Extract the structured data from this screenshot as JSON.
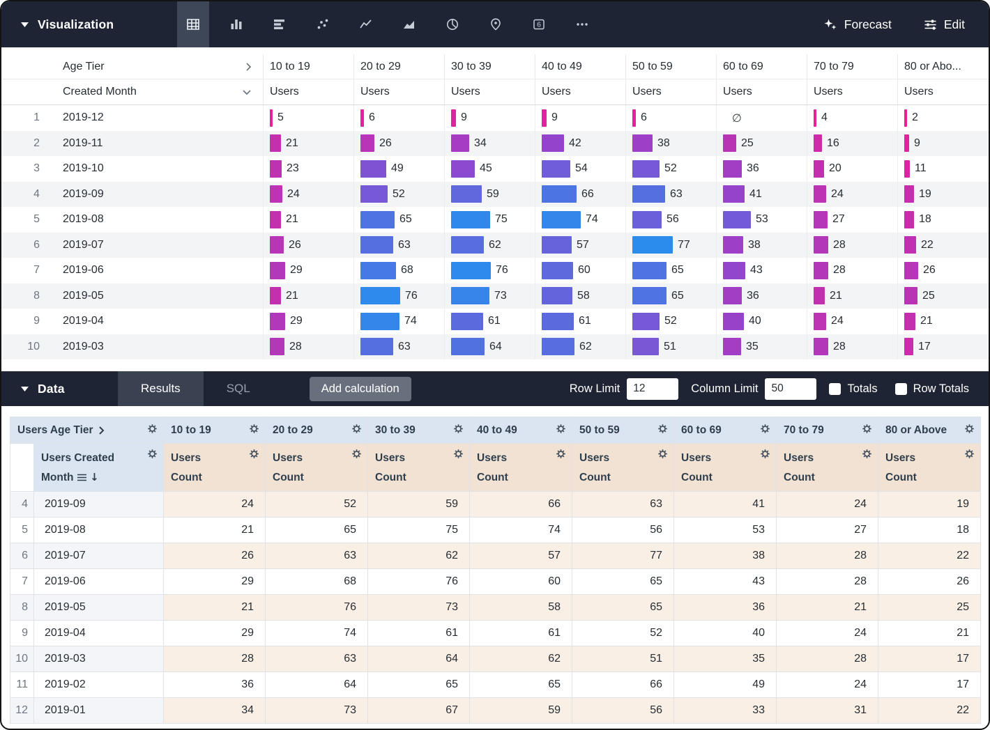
{
  "viz_bar": {
    "title": "Visualization",
    "selected_icon": "table",
    "icon_names": [
      "table",
      "column-chart",
      "bar-chart",
      "scatter",
      "line-chart",
      "area-chart",
      "pie-chart",
      "map",
      "single-value",
      "more"
    ],
    "single_value_glyph": "6",
    "forecast_label": "Forecast",
    "edit_label": "Edit"
  },
  "viz_table": {
    "pivot_field_label": "Age Tier",
    "dimension_field_label": "Created Month",
    "measure_label": "Users",
    "null_symbol": "∅",
    "max_value": 77,
    "bar_gradient": [
      "#ec1e96",
      "#9444cc",
      "#2b8cee"
    ],
    "columns": [
      "10 to 19",
      "20 to 29",
      "30 to 39",
      "40 to 49",
      "50 to 59",
      "60 to 69",
      "70 to 79",
      "80 or Abo..."
    ],
    "rows": [
      {
        "index": 1,
        "month": "2019-12",
        "values": [
          5,
          6,
          9,
          9,
          6,
          null,
          4,
          2
        ]
      },
      {
        "index": 2,
        "month": "2019-11",
        "values": [
          21,
          26,
          34,
          42,
          38,
          25,
          16,
          9
        ]
      },
      {
        "index": 3,
        "month": "2019-10",
        "values": [
          23,
          49,
          45,
          54,
          52,
          36,
          20,
          11
        ]
      },
      {
        "index": 4,
        "month": "2019-09",
        "values": [
          24,
          52,
          59,
          66,
          63,
          41,
          24,
          19
        ]
      },
      {
        "index": 5,
        "month": "2019-08",
        "values": [
          21,
          65,
          75,
          74,
          56,
          53,
          27,
          18
        ]
      },
      {
        "index": 6,
        "month": "2019-07",
        "values": [
          26,
          63,
          62,
          57,
          77,
          38,
          28,
          22
        ]
      },
      {
        "index": 7,
        "month": "2019-06",
        "values": [
          29,
          68,
          76,
          60,
          65,
          43,
          28,
          26
        ]
      },
      {
        "index": 8,
        "month": "2019-05",
        "values": [
          21,
          76,
          73,
          58,
          65,
          36,
          21,
          25
        ]
      },
      {
        "index": 9,
        "month": "2019-04",
        "values": [
          29,
          74,
          61,
          61,
          52,
          40,
          24,
          21
        ]
      },
      {
        "index": 10,
        "month": "2019-03",
        "values": [
          28,
          63,
          64,
          62,
          51,
          35,
          28,
          17
        ]
      }
    ]
  },
  "data_panel": {
    "title": "Data",
    "results_tab": "Results",
    "sql_tab": "SQL",
    "selected_tab": "Results",
    "add_calculation": "Add calculation",
    "row_limit_label": "Row Limit",
    "row_limit_value": "12",
    "column_limit_label": "Column Limit",
    "column_limit_value": "50",
    "totals_label": "Totals",
    "totals_checked": false,
    "row_totals_label": "Row Totals",
    "row_totals_checked": false
  },
  "data_table": {
    "corner_header": "Users Age Tier",
    "dimension_header_line1": "Users Created",
    "dimension_header_line2": "Month",
    "measure_header_line1": "Users",
    "measure_header_line2": "Count",
    "arrow_down": "↓",
    "columns": [
      "10 to 19",
      "20 to 29",
      "30 to 39",
      "40 to 49",
      "50 to 59",
      "60 to 69",
      "70 to 79",
      "80 or Above"
    ],
    "rows": [
      {
        "index": 4,
        "month": "2019-09",
        "values": [
          24,
          52,
          59,
          66,
          63,
          41,
          24,
          19
        ]
      },
      {
        "index": 5,
        "month": "2019-08",
        "values": [
          21,
          65,
          75,
          74,
          56,
          53,
          27,
          18
        ]
      },
      {
        "index": 6,
        "month": "2019-07",
        "values": [
          26,
          63,
          62,
          57,
          77,
          38,
          28,
          22
        ]
      },
      {
        "index": 7,
        "month": "2019-06",
        "values": [
          29,
          68,
          76,
          60,
          65,
          43,
          28,
          26
        ]
      },
      {
        "index": 8,
        "month": "2019-05",
        "values": [
          21,
          76,
          73,
          58,
          65,
          36,
          21,
          25
        ]
      },
      {
        "index": 9,
        "month": "2019-04",
        "values": [
          29,
          74,
          61,
          61,
          52,
          40,
          24,
          21
        ]
      },
      {
        "index": 10,
        "month": "2019-03",
        "values": [
          28,
          63,
          64,
          62,
          51,
          35,
          28,
          17
        ]
      },
      {
        "index": 11,
        "month": "2019-02",
        "values": [
          36,
          64,
          65,
          65,
          66,
          49,
          24,
          17
        ]
      },
      {
        "index": 12,
        "month": "2019-01",
        "values": [
          34,
          73,
          67,
          59,
          56,
          33,
          31,
          22
        ]
      }
    ]
  },
  "chart_data": {
    "type": "table",
    "row_dimension": "Users Created Month",
    "pivot_dimension": "Users Age Tier",
    "measure": "Users Count",
    "pivot_columns": [
      "10 to 19",
      "20 to 29",
      "30 to 39",
      "40 to 49",
      "50 to 59",
      "60 to 69",
      "70 to 79",
      "80 or Above"
    ],
    "rows": [
      {
        "month": "2019-12",
        "values": [
          5,
          6,
          9,
          9,
          6,
          null,
          4,
          2
        ]
      },
      {
        "month": "2019-11",
        "values": [
          21,
          26,
          34,
          42,
          38,
          25,
          16,
          9
        ]
      },
      {
        "month": "2019-10",
        "values": [
          23,
          49,
          45,
          54,
          52,
          36,
          20,
          11
        ]
      },
      {
        "month": "2019-09",
        "values": [
          24,
          52,
          59,
          66,
          63,
          41,
          24,
          19
        ]
      },
      {
        "month": "2019-08",
        "values": [
          21,
          65,
          75,
          74,
          56,
          53,
          27,
          18
        ]
      },
      {
        "month": "2019-07",
        "values": [
          26,
          63,
          62,
          57,
          77,
          38,
          28,
          22
        ]
      },
      {
        "month": "2019-06",
        "values": [
          29,
          68,
          76,
          60,
          65,
          43,
          28,
          26
        ]
      },
      {
        "month": "2019-05",
        "values": [
          21,
          76,
          73,
          58,
          65,
          36,
          21,
          25
        ]
      },
      {
        "month": "2019-04",
        "values": [
          29,
          74,
          61,
          61,
          52,
          40,
          24,
          21
        ]
      },
      {
        "month": "2019-03",
        "values": [
          28,
          63,
          64,
          62,
          51,
          35,
          28,
          17
        ]
      },
      {
        "month": "2019-02",
        "values": [
          36,
          64,
          65,
          65,
          66,
          49,
          24,
          17
        ]
      },
      {
        "month": "2019-01",
        "values": [
          34,
          73,
          67,
          59,
          56,
          33,
          31,
          22
        ]
      }
    ]
  }
}
